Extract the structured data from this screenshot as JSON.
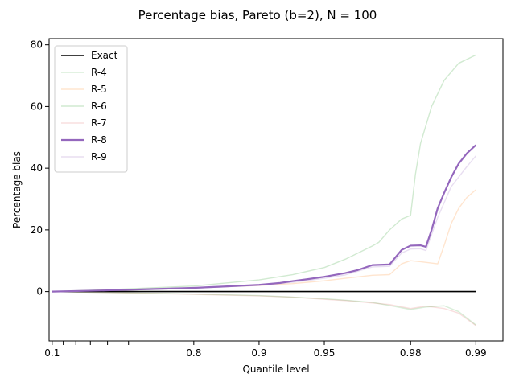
{
  "chart_data": {
    "type": "line",
    "title": "Percentage bias, Pareto (b=2), N = 100",
    "xlabel": "Quantile level",
    "ylabel": "Percentage bias",
    "x_scale": "-log10(1 - p)",
    "xlim": [
      0.07,
      0.9925
    ],
    "ylim": [
      -16,
      82
    ],
    "grid": false,
    "legend_position": "top-left",
    "x_ticks": [
      {
        "value": 0.1,
        "label": "0.1"
      },
      {
        "value": 0.2,
        "label": ""
      },
      {
        "value": 0.3,
        "label": ""
      },
      {
        "value": 0.4,
        "label": ""
      },
      {
        "value": 0.5,
        "label": ""
      },
      {
        "value": 0.6,
        "label": ""
      },
      {
        "value": 0.8,
        "label": "0.8"
      },
      {
        "value": 0.9,
        "label": "0.9"
      },
      {
        "value": 0.95,
        "label": "0.95"
      },
      {
        "value": 0.98,
        "label": "0.98"
      },
      {
        "value": 0.99,
        "label": "0.99"
      }
    ],
    "y_ticks": [
      0,
      20,
      40,
      60,
      80
    ],
    "series": [
      {
        "name": "Exact",
        "color": "#000000",
        "opacity": 1.0,
        "width": 1.6,
        "points": [
          [
            0.1,
            0
          ],
          [
            0.99,
            0
          ]
        ]
      },
      {
        "name": "R-4",
        "color": "#2ca02c",
        "opacity": 0.18,
        "width": 1.4,
        "points": [
          [
            0.1,
            0
          ],
          [
            0.5,
            -0.3
          ],
          [
            0.8,
            -0.8
          ],
          [
            0.9,
            -1.3
          ],
          [
            0.92,
            -1.6
          ],
          [
            0.95,
            -2.3
          ],
          [
            0.96,
            -2.8
          ],
          [
            0.97,
            -3.5
          ],
          [
            0.975,
            -4.5
          ],
          [
            0.98,
            -5.8
          ],
          [
            0.983,
            -5.0
          ],
          [
            0.986,
            -4.6
          ],
          [
            0.988,
            -6.5
          ],
          [
            0.99,
            -10.8
          ]
        ]
      },
      {
        "name": "R-5",
        "color": "#ff7f0e",
        "opacity": 0.2,
        "width": 1.4,
        "points": [
          [
            0.1,
            0
          ],
          [
            0.5,
            0.5
          ],
          [
            0.8,
            1.2
          ],
          [
            0.9,
            2.0
          ],
          [
            0.93,
            2.6
          ],
          [
            0.95,
            3.5
          ],
          [
            0.96,
            4.3
          ],
          [
            0.97,
            5.3
          ],
          [
            0.975,
            5.5
          ],
          [
            0.978,
            9.0
          ],
          [
            0.98,
            10.0
          ],
          [
            0.982,
            9.7
          ],
          [
            0.985,
            9.0
          ],
          [
            0.986,
            15.0
          ],
          [
            0.987,
            22.0
          ],
          [
            0.988,
            27.0
          ],
          [
            0.989,
            30.5
          ],
          [
            0.99,
            33.0
          ]
        ]
      },
      {
        "name": "R-6",
        "color": "#2ca02c",
        "opacity": 0.22,
        "width": 1.4,
        "points": [
          [
            0.1,
            0
          ],
          [
            0.5,
            0.6
          ],
          [
            0.8,
            1.8
          ],
          [
            0.9,
            3.8
          ],
          [
            0.93,
            5.5
          ],
          [
            0.95,
            7.8
          ],
          [
            0.96,
            10.5
          ],
          [
            0.97,
            14.8
          ],
          [
            0.972,
            16.0
          ],
          [
            0.975,
            20.0
          ],
          [
            0.978,
            23.5
          ],
          [
            0.98,
            24.7
          ],
          [
            0.981,
            38.0
          ],
          [
            0.982,
            48.0
          ],
          [
            0.984,
            60.0
          ],
          [
            0.986,
            68.5
          ],
          [
            0.988,
            74.0
          ],
          [
            0.99,
            76.7
          ]
        ]
      },
      {
        "name": "R-7",
        "color": "#d62728",
        "opacity": 0.15,
        "width": 1.4,
        "points": [
          [
            0.1,
            0
          ],
          [
            0.5,
            -0.3
          ],
          [
            0.8,
            -0.9
          ],
          [
            0.9,
            -1.4
          ],
          [
            0.93,
            -1.8
          ],
          [
            0.95,
            -2.5
          ],
          [
            0.96,
            -2.9
          ],
          [
            0.97,
            -3.7
          ],
          [
            0.975,
            -4.2
          ],
          [
            0.98,
            -5.5
          ],
          [
            0.983,
            -4.7
          ],
          [
            0.986,
            -5.5
          ],
          [
            0.988,
            -7.0
          ],
          [
            0.99,
            -11.0
          ]
        ]
      },
      {
        "name": "R-8",
        "color": "#9467bd",
        "opacity": 1.0,
        "width": 2.2,
        "points": [
          [
            0.1,
            0
          ],
          [
            0.5,
            0.4
          ],
          [
            0.8,
            1.2
          ],
          [
            0.85,
            1.6
          ],
          [
            0.9,
            2.2
          ],
          [
            0.92,
            2.8
          ],
          [
            0.93,
            3.4
          ],
          [
            0.94,
            4.0
          ],
          [
            0.95,
            4.8
          ],
          [
            0.96,
            6.0
          ],
          [
            0.965,
            7.0
          ],
          [
            0.97,
            8.6
          ],
          [
            0.975,
            8.8
          ],
          [
            0.978,
            13.5
          ],
          [
            0.98,
            14.9
          ],
          [
            0.982,
            15.0
          ],
          [
            0.983,
            14.5
          ],
          [
            0.984,
            20.0
          ],
          [
            0.985,
            27.0
          ],
          [
            0.986,
            32.0
          ],
          [
            0.987,
            37.0
          ],
          [
            0.988,
            41.5
          ],
          [
            0.989,
            44.8
          ],
          [
            0.99,
            47.5
          ]
        ]
      },
      {
        "name": "R-9",
        "color": "#9467bd",
        "opacity": 0.22,
        "width": 1.4,
        "points": [
          [
            0.1,
            0
          ],
          [
            0.5,
            0.3
          ],
          [
            0.8,
            1.1
          ],
          [
            0.9,
            2.0
          ],
          [
            0.93,
            3.0
          ],
          [
            0.95,
            4.3
          ],
          [
            0.96,
            5.4
          ],
          [
            0.97,
            8.0
          ],
          [
            0.975,
            8.2
          ],
          [
            0.978,
            12.5
          ],
          [
            0.98,
            13.8
          ],
          [
            0.982,
            13.9
          ],
          [
            0.983,
            13.3
          ],
          [
            0.985,
            24.0
          ],
          [
            0.987,
            34.0
          ],
          [
            0.989,
            40.5
          ],
          [
            0.99,
            44.0
          ]
        ]
      }
    ]
  }
}
